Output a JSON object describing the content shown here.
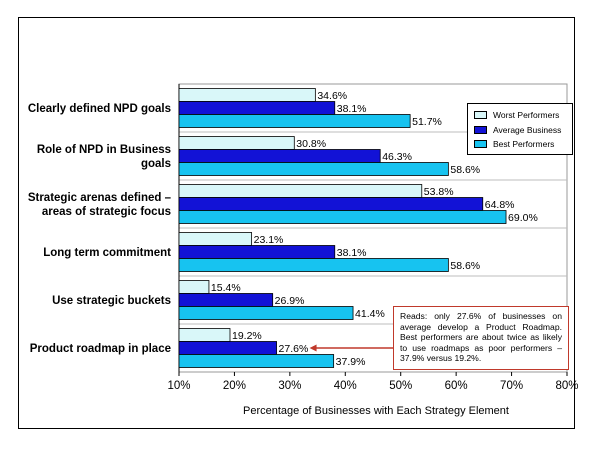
{
  "chart_data": {
    "type": "bar",
    "orientation": "horizontal",
    "categories": [
      [
        "Clearly defined NPD goals"
      ],
      [
        "Role of NPD in Business",
        "goals"
      ],
      [
        "Strategic arenas defined –",
        "areas of strategic focus"
      ],
      [
        "Long term commitment"
      ],
      [
        "Use strategic buckets"
      ],
      [
        "Product roadmap in place"
      ]
    ],
    "series": [
      {
        "name": "Worst Performers",
        "color": "#d9f7f9",
        "values": [
          34.6,
          30.8,
          53.8,
          23.1,
          15.4,
          19.2
        ],
        "labels": [
          "34.6%",
          "30.8%",
          "53.8%",
          "23.1%",
          "15.4%",
          "19.2%"
        ]
      },
      {
        "name": "Average Business",
        "color": "#1212d6",
        "values": [
          38.1,
          46.3,
          64.8,
          38.1,
          26.9,
          27.6
        ],
        "labels": [
          "38.1%",
          "46.3%",
          "64.8%",
          "38.1%",
          "26.9%",
          "27.6%"
        ]
      },
      {
        "name": "Best Performers",
        "color": "#17c3f0",
        "values": [
          51.7,
          58.6,
          69.0,
          58.6,
          41.4,
          37.9
        ],
        "labels": [
          "51.7%",
          "58.6%",
          "69.0%",
          "58.6%",
          "41.4%",
          "37.9%"
        ]
      }
    ],
    "xlim": [
      10,
      80
    ],
    "xticks": [
      "10%",
      "20%",
      "30%",
      "40%",
      "50%",
      "60%",
      "70%",
      "80%"
    ],
    "xlabel": "Percentage of Businesses with Each Strategy Element",
    "ylabel": "",
    "title": "",
    "legend_position": "top-right",
    "gridlines": "horizontal separators between categories",
    "annotation": "Reads: only 27.6% of businesses on average develop a Product Roadmap. Best performers are about twice as likely to use roadmaps as poor performers – 37.9% versus 19.2%.",
    "annotation_border_color": "#c0392b"
  }
}
